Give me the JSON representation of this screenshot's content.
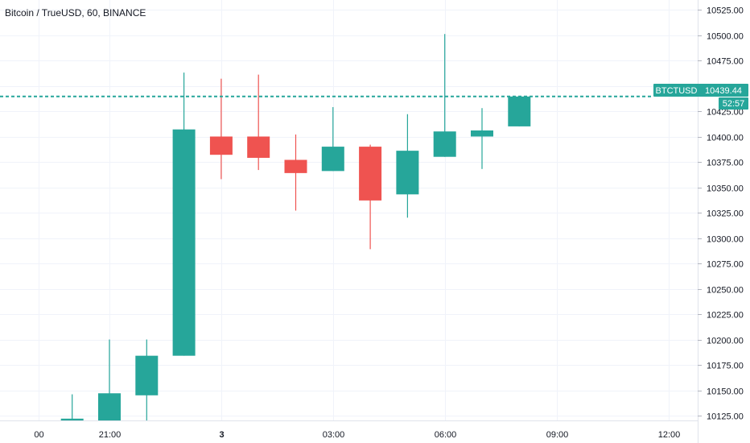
{
  "header": {
    "title": "Bitcoin / TrueUSD, 60, BINANCE"
  },
  "colors": {
    "up": "#26a69a",
    "down": "#ef5350",
    "grid": "#f0f3fa",
    "axis_text": "#131722",
    "price_line": "#26a69a"
  },
  "price_badge": {
    "symbol": "BTCTUSD",
    "price": "10439.44",
    "countdown": "52:57"
  },
  "chart_data": {
    "type": "candlestick",
    "y_axis_labels": [
      "10525.00",
      "10500.00",
      "10475.00",
      "10450.00",
      "10425.00",
      "10400.00",
      "10375.00",
      "10350.00",
      "10325.00",
      "10300.00",
      "10275.00",
      "10250.00",
      "10225.00",
      "10200.00",
      "10175.00",
      "10150.00",
      "10125.00"
    ],
    "x_axis_labels": [
      {
        "text": "00",
        "slot": -1.9,
        "bold": false
      },
      {
        "text": "21:00",
        "slot": 0.0,
        "bold": false
      },
      {
        "text": "3",
        "slot": 3.0,
        "bold": true
      },
      {
        "text": "03:00",
        "slot": 6.0,
        "bold": false
      },
      {
        "text": "06:00",
        "slot": 9.0,
        "bold": false
      },
      {
        "text": "09:00",
        "slot": 12.0,
        "bold": false
      },
      {
        "text": "12:00",
        "slot": 15.0,
        "bold": false
      }
    ],
    "ylim": [
      10115,
      10530
    ],
    "current_price": 10439.44,
    "candles": [
      {
        "slot": -1,
        "open": 10120,
        "high": 10146,
        "low": 10118,
        "close": 10122
      },
      {
        "slot": 0,
        "open": 10120,
        "high": 10200,
        "low": 10118,
        "close": 10147
      },
      {
        "slot": 1,
        "open": 10145,
        "high": 10200,
        "low": 10120,
        "close": 10184
      },
      {
        "slot": 2,
        "open": 10184,
        "high": 10463,
        "low": 10184,
        "close": 10407
      },
      {
        "slot": 3,
        "open": 10400,
        "high": 10457,
        "low": 10358,
        "close": 10382
      },
      {
        "slot": 4,
        "open": 10400,
        "high": 10461,
        "low": 10367,
        "close": 10379
      },
      {
        "slot": 5,
        "open": 10377,
        "high": 10402,
        "low": 10327,
        "close": 10364
      },
      {
        "slot": 6,
        "open": 10366,
        "high": 10429,
        "low": 10366,
        "close": 10390
      },
      {
        "slot": 7,
        "open": 10390,
        "high": 10392,
        "low": 10289,
        "close": 10337
      },
      {
        "slot": 8,
        "open": 10343,
        "high": 10422,
        "low": 10320,
        "close": 10386
      },
      {
        "slot": 9,
        "open": 10380,
        "high": 10501,
        "low": 10380,
        "close": 10405
      },
      {
        "slot": 10,
        "open": 10400,
        "high": 10428,
        "low": 10368,
        "close": 10406
      },
      {
        "slot": 11,
        "open": 10410,
        "high": 10440,
        "low": 10410,
        "close": 10439.44
      }
    ]
  }
}
